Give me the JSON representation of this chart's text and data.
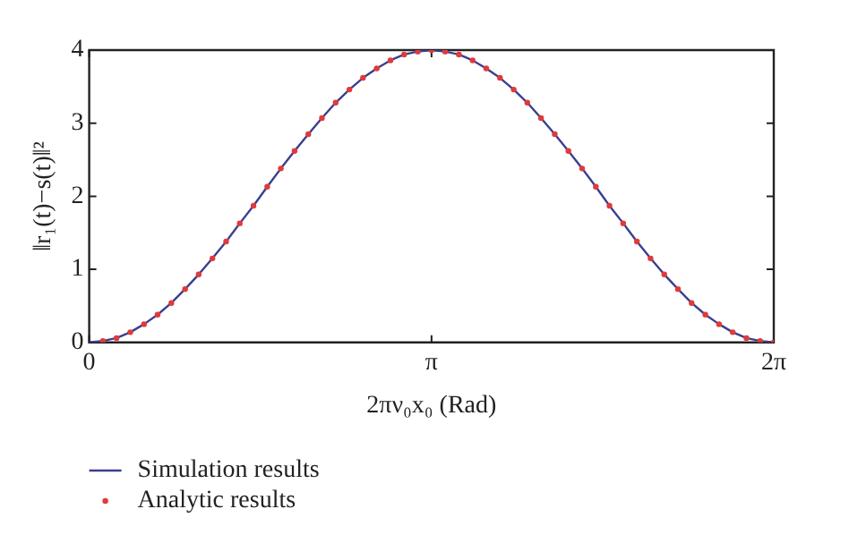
{
  "chart_data": {
    "type": "line",
    "xlabel": "2πν₀x₀ (Rad)",
    "ylabel": "‖r₁(t)−s(t)‖²",
    "xlim": [
      0,
      6.283
    ],
    "xticks": [
      {
        "value": 0,
        "label": "0"
      },
      {
        "value": 3.142,
        "label": "π"
      },
      {
        "value": 6.283,
        "label": "2π"
      }
    ],
    "ylim": [
      0,
      4
    ],
    "yticks": [
      0,
      1,
      2,
      3,
      4
    ],
    "grid": false,
    "legend": "bottom",
    "series": [
      {
        "name": "Simulation results",
        "color": "#3a3f8f",
        "marker": "none",
        "line_style": "solid",
        "x": [
          0,
          0.126,
          0.251,
          0.377,
          0.503,
          0.628,
          0.754,
          0.88,
          1.005,
          1.131,
          1.257,
          1.382,
          1.508,
          1.634,
          1.759,
          1.885,
          2.011,
          2.136,
          2.262,
          2.388,
          2.513,
          2.639,
          2.765,
          2.89,
          3.016,
          3.142,
          3.267,
          3.393,
          3.519,
          3.644,
          3.77,
          3.896,
          4.021,
          4.147,
          4.273,
          4.398,
          4.524,
          4.65,
          4.775,
          4.901,
          5.027,
          5.152,
          5.278,
          5.404,
          5.529,
          5.655,
          5.781,
          5.906,
          6.032,
          6.158,
          6.283
        ],
        "values": [
          0,
          0.02,
          0.06,
          0.14,
          0.25,
          0.38,
          0.54,
          0.73,
          0.93,
          1.15,
          1.38,
          1.63,
          1.87,
          2.13,
          2.38,
          2.62,
          2.85,
          3.07,
          3.28,
          3.46,
          3.62,
          3.75,
          3.86,
          3.94,
          3.98,
          4,
          3.98,
          3.94,
          3.86,
          3.75,
          3.62,
          3.46,
          3.28,
          3.07,
          2.85,
          2.62,
          2.38,
          2.13,
          1.87,
          1.63,
          1.38,
          1.15,
          0.93,
          0.73,
          0.54,
          0.38,
          0.25,
          0.14,
          0.06,
          0.02,
          0
        ]
      },
      {
        "name": "Analytic results",
        "type": "scatter",
        "color": "#e03a3a",
        "marker": "circle",
        "x": [
          0.126,
          0.251,
          0.377,
          0.503,
          0.628,
          0.754,
          0.88,
          1.005,
          1.131,
          1.257,
          1.382,
          1.508,
          1.634,
          1.759,
          1.885,
          2.011,
          2.136,
          2.262,
          2.388,
          2.513,
          2.639,
          2.765,
          2.89,
          3.016,
          3.142,
          3.267,
          3.393,
          3.519,
          3.644,
          3.77,
          3.896,
          4.021,
          4.147,
          4.273,
          4.398,
          4.524,
          4.65,
          4.775,
          4.901,
          5.027,
          5.152,
          5.278,
          5.404,
          5.529,
          5.655,
          5.781,
          5.906,
          6.032,
          6.158,
          6.283
        ],
        "values": [
          0.02,
          0.06,
          0.14,
          0.25,
          0.38,
          0.54,
          0.73,
          0.93,
          1.15,
          1.38,
          1.63,
          1.87,
          2.13,
          2.38,
          2.62,
          2.85,
          3.07,
          3.28,
          3.46,
          3.62,
          3.75,
          3.86,
          3.94,
          3.98,
          4,
          3.98,
          3.94,
          3.86,
          3.75,
          3.62,
          3.46,
          3.28,
          3.07,
          2.85,
          2.62,
          2.38,
          2.13,
          1.87,
          1.63,
          1.38,
          1.15,
          0.93,
          0.73,
          0.54,
          0.38,
          0.25,
          0.14,
          0.06,
          0.02,
          0
        ]
      }
    ]
  }
}
